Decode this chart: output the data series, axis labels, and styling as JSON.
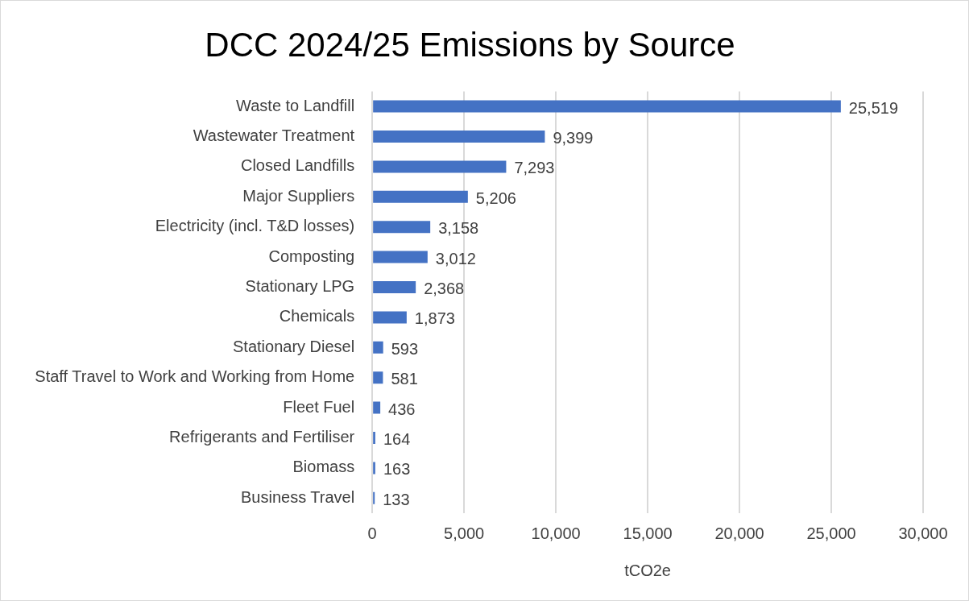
{
  "chart_data": {
    "type": "bar",
    "orientation": "horizontal",
    "title": "DCC 2024/25 Emissions by Source",
    "xlabel": "tCO2e",
    "categories": [
      "Waste to Landfill",
      "Wastewater Treatment",
      "Closed Landfills",
      "Major Suppliers",
      "Electricity (incl. T&D losses)",
      "Composting",
      "Stationary LPG",
      "Chemicals",
      "Stationary Diesel",
      "Staff Travel to Work and Working from Home",
      "Fleet Fuel",
      "Refrigerants and Fertiliser",
      "Biomass",
      "Business Travel"
    ],
    "values": [
      25519,
      9399,
      7293,
      5206,
      3158,
      3012,
      2368,
      1873,
      593,
      581,
      436,
      164,
      163,
      133
    ],
    "value_labels": [
      "25,519",
      "9,399",
      "7,293",
      "5,206",
      "3,158",
      "3,012",
      "2,368",
      "1,873",
      "593",
      "581",
      "436",
      "164",
      "163",
      "133"
    ],
    "color": "#4472c4",
    "xlim": [
      0,
      30000
    ],
    "xticks": [
      0,
      {
        "value": 5000,
        "label": "5,000"
      },
      {
        "value": 10000,
        "label": "10,000"
      },
      {
        "value": 15000,
        "label": "15,000"
      },
      {
        "value": 20000,
        "label": "20,000"
      },
      {
        "value": 25000,
        "label": "25,000"
      },
      {
        "value": 30000,
        "label": "30,000"
      }
    ],
    "grid": "x"
  }
}
